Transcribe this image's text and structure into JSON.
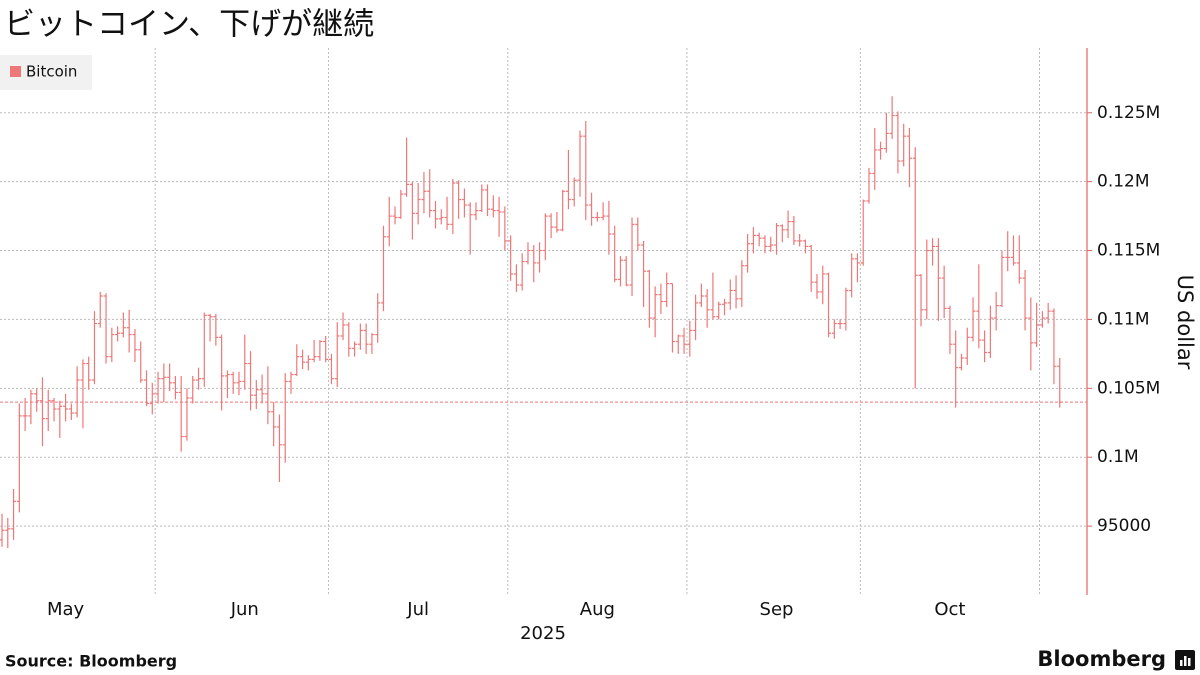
{
  "chart_data": {
    "type": "ohlc",
    "title": "ビットコイン、下げが継続",
    "xlabel": "2025",
    "ylabel": "US dollar",
    "source": "Source:  Bloomberg",
    "logo": "Bloomberg",
    "grid": true,
    "legend": "top-left",
    "ylim": [
      90000,
      129700
    ],
    "yticks": [
      95000,
      {
        "value": 100000,
        "label": "0.1M"
      },
      {
        "value": 105000,
        "label": "0.105M"
      },
      {
        "value": 110000,
        "label": "0.11M"
      },
      {
        "value": 115000,
        "label": "0.115M"
      },
      {
        "value": 120000,
        "label": "0.12M"
      },
      {
        "value": 125000,
        "label": "0.125M"
      }
    ],
    "categories": [
      null,
      null,
      null,
      null,
      null,
      null,
      null,
      null,
      null,
      null,
      null,
      "May",
      null,
      null,
      null,
      null,
      null,
      null,
      null,
      null,
      null,
      null,
      null,
      null,
      null,
      null,
      null,
      null,
      null,
      null,
      null,
      null,
      null,
      null,
      null,
      null,
      null,
      null,
      null,
      null,
      null,
      null,
      "Jun",
      null,
      null,
      null,
      null,
      null,
      null,
      null,
      null,
      null,
      null,
      null,
      null,
      null,
      null,
      null,
      null,
      null,
      null,
      null,
      null,
      null,
      null,
      null,
      null,
      null,
      null,
      null,
      null,
      null,
      "Jul",
      null,
      null,
      null,
      null,
      null,
      null,
      null,
      null,
      null,
      null,
      null,
      null,
      null,
      null,
      null,
      null,
      null,
      null,
      null,
      null,
      null,
      null,
      null,
      null,
      null,
      null,
      null,
      null,
      null,
      null,
      "Aug",
      null,
      null,
      null,
      null,
      null,
      null,
      null,
      null,
      null,
      null,
      null,
      null,
      null,
      null,
      null,
      null,
      null,
      null,
      null,
      null,
      null,
      null,
      null,
      null,
      null,
      null,
      null,
      null,
      null,
      null,
      "Sep",
      null,
      null,
      null,
      null,
      null,
      null,
      null,
      null,
      null,
      null,
      null,
      null,
      null,
      null,
      null,
      null,
      null,
      null,
      null,
      null,
      null,
      null,
      null,
      null,
      null,
      null,
      null,
      null,
      null,
      "Oct",
      null,
      null,
      null,
      null,
      null,
      null,
      null,
      null,
      null,
      null,
      null,
      null,
      null,
      null,
      null,
      null,
      null,
      null,
      null
    ],
    "series": [
      {
        "name": "Bitcoin",
        "color": "#ee7777",
        "open": [
          94000,
          94700,
          94800,
          96800,
          103000,
          103000,
          104600,
          104100,
          102800,
          104100,
          103500,
          103700,
          103500,
          103200,
          105600,
          106800,
          105600,
          109700,
          111700,
          107300,
          108900,
          109000,
          109400,
          108900,
          107800,
          105600,
          103900,
          104600,
          105700,
          105800,
          105400,
          104700,
          101500,
          104300,
          105600,
          105700,
          110300,
          110200,
          108700,
          105900,
          106000,
          105400,
          105500,
          106800,
          104500,
          104900,
          104600,
          103300,
          102200,
          100900,
          105500,
          106000,
          107300,
          106900,
          107100,
          107300,
          108400,
          107100,
          105700,
          108800,
          109600,
          107900,
          108200,
          109200,
          108200,
          108900,
          111200,
          116000,
          117500,
          117400,
          119100,
          119800,
          117700,
          118700,
          119300,
          117900,
          117300,
          117400,
          116900,
          119900,
          118700,
          118300,
          117600,
          117900,
          119400,
          118000,
          117900,
          117800,
          115700,
          113300,
          112500,
          114200,
          115000,
          114100,
          115000,
          117500,
          116700,
          116500,
          119300,
          118700,
          120100,
          123300,
          118300,
          117400,
          117400,
          117500,
          116200,
          112900,
          114300,
          112500,
          116900,
          115400,
          113500,
          110100,
          111800,
          111300,
          112600,
          108400,
          108800,
          108200,
          109200,
          111200,
          111700,
          110700,
          110200,
          111100,
          111200,
          112100,
          111500,
          113900,
          115500,
          116100,
          115900,
          115300,
          115400,
          116800,
          116500,
          117100,
          115700,
          115700,
          115300,
          112700,
          112000,
          113300,
          109000,
          109700,
          109700,
          112100,
          114400,
          114100,
          118600,
          120600,
          122300,
          122400,
          123500,
          124800,
          121500,
          123300,
          121700,
          113200,
          110700,
          115000,
          115300,
          113000,
          110800,
          108200,
          106500,
          107200,
          108700,
          110600,
          108500,
          107600,
          110100,
          111000,
          114500,
          114500,
          114100,
          113000,
          110100,
          108300,
          109600,
          110100,
          110600,
          106600
        ],
        "high": [
          95900,
          95600,
          97700,
          103900,
          104300,
          104900,
          105000,
          105800,
          104900,
          104300,
          104100,
          104600,
          103900,
          106600,
          107100,
          107300,
          110600,
          112000,
          111900,
          109400,
          109500,
          110500,
          110700,
          109300,
          108400,
          106300,
          105400,
          106200,
          106800,
          106800,
          105900,
          105900,
          105000,
          105900,
          106500,
          110500,
          110400,
          110400,
          108900,
          106300,
          106200,
          106200,
          108900,
          107700,
          105600,
          106000,
          106600,
          104000,
          103100,
          106100,
          106200,
          108200,
          107800,
          107400,
          108500,
          108500,
          108800,
          107500,
          109800,
          110500,
          109800,
          108400,
          109700,
          109700,
          109000,
          111900,
          116800,
          118900,
          118200,
          119400,
          123200,
          120000,
          119900,
          120700,
          120900,
          118600,
          118000,
          118900,
          120200,
          120100,
          119500,
          118500,
          118500,
          119800,
          119800,
          119000,
          118900,
          118200,
          116100,
          114000,
          114800,
          115600,
          115400,
          115600,
          117700,
          117700,
          117800,
          119400,
          122300,
          120300,
          123700,
          124400,
          119200,
          117800,
          118500,
          118600,
          116800,
          114600,
          114600,
          117400,
          117400,
          115700,
          113600,
          112400,
          112600,
          113400,
          112600,
          108900,
          109400,
          109900,
          111800,
          112600,
          112200,
          113400,
          111300,
          111500,
          112900,
          113200,
          114300,
          116200,
          116700,
          116300,
          116100,
          116000,
          117000,
          116900,
          117900,
          117500,
          116200,
          115800,
          115400,
          113300,
          113900,
          113400,
          110000,
          110000,
          112300,
          114800,
          114800,
          118700,
          121000,
          123900,
          122900,
          125000,
          126200,
          125100,
          124200,
          123900,
          122500,
          113300,
          115800,
          115900,
          115900,
          113900,
          111000,
          109200,
          107500,
          109400,
          111600,
          114000,
          109200,
          111000,
          112000,
          115000,
          116400,
          116100,
          116100,
          113600,
          111600,
          111200,
          110600,
          111200,
          110800,
          107200
        ],
        "low": [
          93500,
          93400,
          94000,
          96000,
          101900,
          102400,
          103300,
          100800,
          101900,
          102600,
          101400,
          102600,
          102700,
          102900,
          102100,
          104900,
          105300,
          109400,
          106800,
          106900,
          108400,
          108700,
          107600,
          106900,
          105400,
          103700,
          103100,
          103900,
          104000,
          104800,
          104200,
          100400,
          101200,
          103900,
          104900,
          105100,
          108400,
          108100,
          103400,
          104300,
          104600,
          104500,
          104900,
          103400,
          103500,
          103900,
          102400,
          100800,
          98200,
          99600,
          104600,
          105900,
          106400,
          106300,
          106900,
          107000,
          106900,
          105300,
          105100,
          108500,
          107300,
          107300,
          107800,
          107500,
          107500,
          108300,
          110600,
          115300,
          116900,
          117300,
          118900,
          115800,
          116900,
          117700,
          117400,
          116600,
          116900,
          116500,
          116200,
          117300,
          117400,
          114700,
          117200,
          117800,
          117500,
          117400,
          116000,
          115000,
          112800,
          112000,
          112100,
          114000,
          112700,
          113400,
          114300,
          115900,
          116300,
          116400,
          118000,
          118200,
          118900,
          117200,
          116800,
          117100,
          117200,
          114700,
          112700,
          112400,
          112400,
          111700,
          115000,
          110900,
          109400,
          108700,
          110400,
          110900,
          107600,
          107500,
          107500,
          107300,
          108500,
          110900,
          109400,
          110000,
          110000,
          110300,
          110700,
          110800,
          110900,
          113400,
          114800,
          115300,
          114800,
          114900,
          114700,
          115600,
          115900,
          115400,
          115300,
          114800,
          112000,
          111500,
          111100,
          108700,
          108600,
          109300,
          109200,
          111600,
          112700,
          113900,
          118400,
          119400,
          121600,
          122100,
          123100,
          120600,
          121100,
          119600,
          105000,
          109500,
          110000,
          113900,
          109900,
          110100,
          107500,
          103600,
          106300,
          106700,
          108400,
          107900,
          106900,
          107200,
          109200,
          110900,
          113500,
          113900,
          112600,
          109200,
          106300,
          108000,
          109400,
          109700,
          105300,
          103600
        ],
        "close": [
          94700,
          94800,
          96800,
          103000,
          103000,
          104600,
          104100,
          102800,
          104100,
          103500,
          103700,
          103500,
          103200,
          105600,
          106800,
          105600,
          109700,
          111700,
          107300,
          108900,
          109000,
          109400,
          108900,
          107800,
          105600,
          103900,
          104600,
          105700,
          105800,
          105400,
          104700,
          101500,
          104300,
          105600,
          105700,
          110300,
          110200,
          108700,
          105900,
          106000,
          105400,
          105500,
          106800,
          104500,
          104900,
          104600,
          103300,
          102200,
          100900,
          105500,
          106000,
          107300,
          106900,
          107100,
          107300,
          108400,
          107100,
          105700,
          108800,
          109600,
          107900,
          108200,
          109200,
          108200,
          108900,
          111200,
          116000,
          117500,
          117400,
          119100,
          119800,
          117700,
          118700,
          119300,
          117900,
          117300,
          117400,
          116900,
          119900,
          118700,
          118300,
          117600,
          117900,
          119400,
          118000,
          117900,
          117800,
          115700,
          113300,
          112500,
          114200,
          115000,
          114100,
          115000,
          117500,
          116700,
          116500,
          119300,
          118700,
          120100,
          123300,
          118300,
          117400,
          117400,
          117500,
          116200,
          112900,
          114300,
          112500,
          116900,
          115400,
          113500,
          110100,
          111800,
          111300,
          112600,
          108400,
          108800,
          108200,
          109200,
          111200,
          111700,
          110700,
          110200,
          111100,
          111200,
          112100,
          111500,
          113900,
          115500,
          116100,
          115900,
          115300,
          115400,
          116800,
          116500,
          117100,
          115700,
          115700,
          115300,
          112700,
          112000,
          113300,
          109000,
          109700,
          109700,
          112100,
          114400,
          114100,
          118600,
          120600,
          122300,
          122400,
          123500,
          124800,
          121500,
          123300,
          121700,
          113200,
          110700,
          115000,
          115300,
          113000,
          110800,
          108200,
          106500,
          107200,
          108700,
          110600,
          108500,
          107600,
          110100,
          111000,
          114500,
          114500,
          114100,
          113000,
          110100,
          108300,
          109600,
          110100,
          110600,
          106600,
          104000
        ]
      }
    ]
  }
}
